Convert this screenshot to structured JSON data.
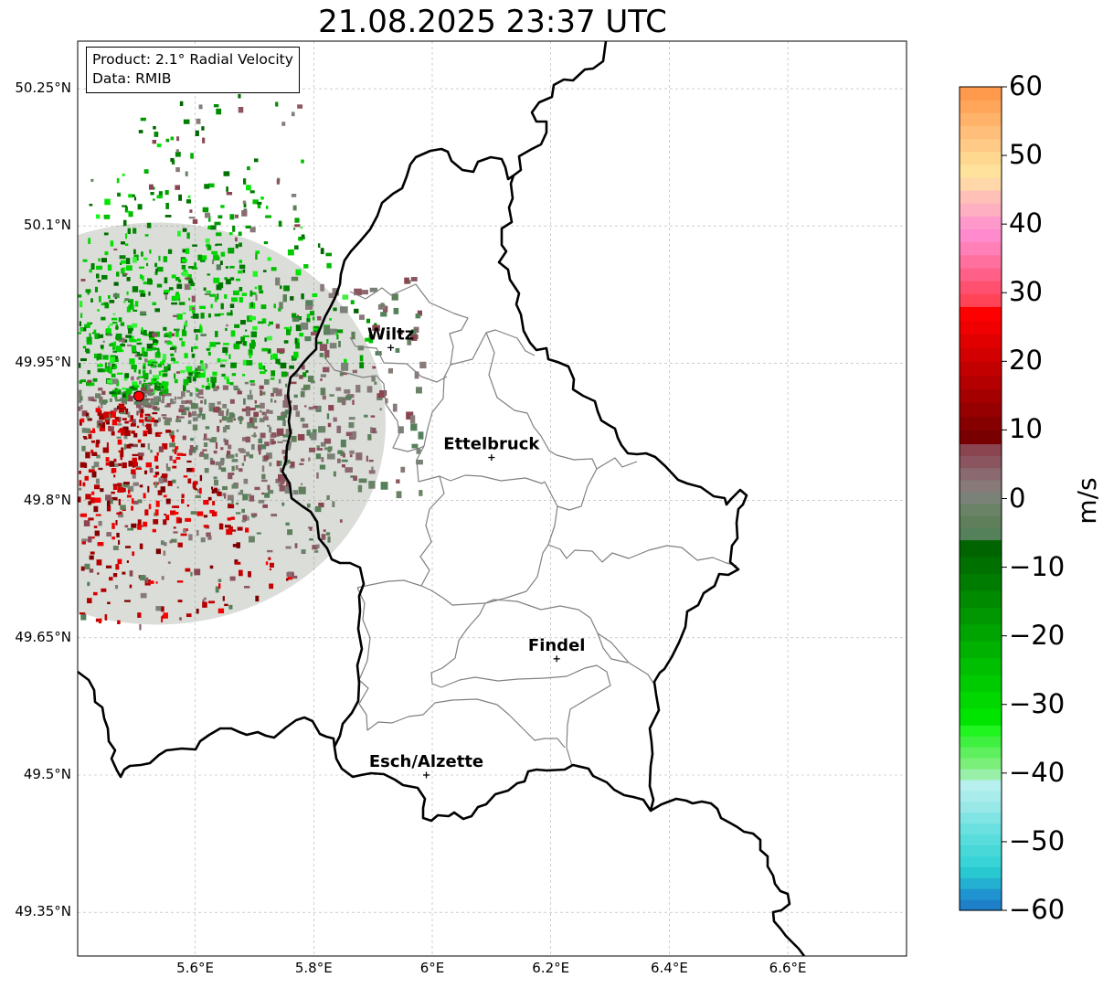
{
  "title": "21.08.2025 23:37 UTC",
  "info": {
    "product": "Product: 2.1° Radial Velocity",
    "data": "Data: RMIB"
  },
  "axes": {
    "lon_range": [
      5.4,
      6.8
    ],
    "lat_range": [
      49.3,
      50.3
    ],
    "lon_ticks": [
      {
        "value": 5.6,
        "label": "5.6°E"
      },
      {
        "value": 5.8,
        "label": "5.8°E"
      },
      {
        "value": 6.0,
        "label": "6°E"
      },
      {
        "value": 6.2,
        "label": "6.2°E"
      },
      {
        "value": 6.4,
        "label": "6.4°E"
      },
      {
        "value": 6.6,
        "label": "6.6°E"
      }
    ],
    "lat_ticks": [
      {
        "value": 50.25,
        "label": "50.25°N"
      },
      {
        "value": 50.1,
        "label": "50.1°N"
      },
      {
        "value": 49.95,
        "label": "49.95°N"
      },
      {
        "value": 49.8,
        "label": "49.8°N"
      },
      {
        "value": 49.65,
        "label": "49.65°N"
      },
      {
        "value": 49.5,
        "label": "49.5°N"
      },
      {
        "value": 49.35,
        "label": "49.35°N"
      }
    ]
  },
  "cities": [
    {
      "name": "Wiltz",
      "lon": 5.93,
      "lat": 49.967
    },
    {
      "name": "Ettelbruck",
      "lon": 6.1,
      "lat": 49.847
    },
    {
      "name": "Findel",
      "lon": 6.21,
      "lat": 49.627
    },
    {
      "name": "Esch/Alzette",
      "lon": 5.99,
      "lat": 49.5
    }
  ],
  "radar_site": {
    "lon": 5.505,
    "lat": 49.914
  },
  "colorbar": {
    "unit": "m/s",
    "range": [
      -60,
      60
    ],
    "ticks": [
      {
        "value": 60,
        "label": "60"
      },
      {
        "value": 50,
        "label": "50"
      },
      {
        "value": 40,
        "label": "40"
      },
      {
        "value": 30,
        "label": "30"
      },
      {
        "value": 20,
        "label": "20"
      },
      {
        "value": 10,
        "label": "10"
      },
      {
        "value": 0,
        "label": "0"
      },
      {
        "value": -10,
        "label": "−10"
      },
      {
        "value": -20,
        "label": "−20"
      },
      {
        "value": -30,
        "label": "−30"
      },
      {
        "value": -40,
        "label": "−40"
      },
      {
        "value": -50,
        "label": "−50"
      },
      {
        "value": -60,
        "label": "−60"
      }
    ],
    "colors": {
      "pos_high": [
        "#ff9a4c",
        "#ffa65a",
        "#ffb26a",
        "#ffbe7a",
        "#ffca86",
        "#ffd890",
        "#ffe39c",
        "#ffd7a8",
        "#ffc0b8",
        "#ffb0c0",
        "#ff99cc",
        "#ff8acd",
        "#ff7fb6",
        "#ff709f",
        "#ff6088",
        "#ff5070",
        "#ff4458"
      ],
      "pos_mid": [
        "#ff0000",
        "#f00000",
        "#e10000",
        "#d20000",
        "#c30000",
        "#b40000",
        "#a50000",
        "#960000",
        "#870000",
        "#780000"
      ],
      "near_zero": [
        "#8a4550",
        "#8b5560",
        "#8a6a70",
        "#887a78",
        "#7a8278",
        "#6a8266",
        "#5e7f5a",
        "#54805a"
      ],
      "neg_mid": [
        "#006400",
        "#007000",
        "#007d00",
        "#008a00",
        "#009700",
        "#00a400",
        "#00b100",
        "#00be00",
        "#00cb00",
        "#00d800",
        "#00e500"
      ],
      "neg_high": [
        "#20f520",
        "#40f040",
        "#5ff05f",
        "#7af07a",
        "#98f0a8",
        "#b8f0f0",
        "#a8ecec",
        "#98e8e8",
        "#80e4e4",
        "#6ae0e0",
        "#58dcdc",
        "#48d8d8",
        "#38d4d8",
        "#28c8d0",
        "#24b0d0",
        "#2094d0",
        "#1e80c8"
      ]
    }
  },
  "styles": {
    "border_color": "#000000",
    "canton_color": "#808080",
    "radar_site_color": "#ff0000",
    "grid_color": "#b0b0b0"
  }
}
